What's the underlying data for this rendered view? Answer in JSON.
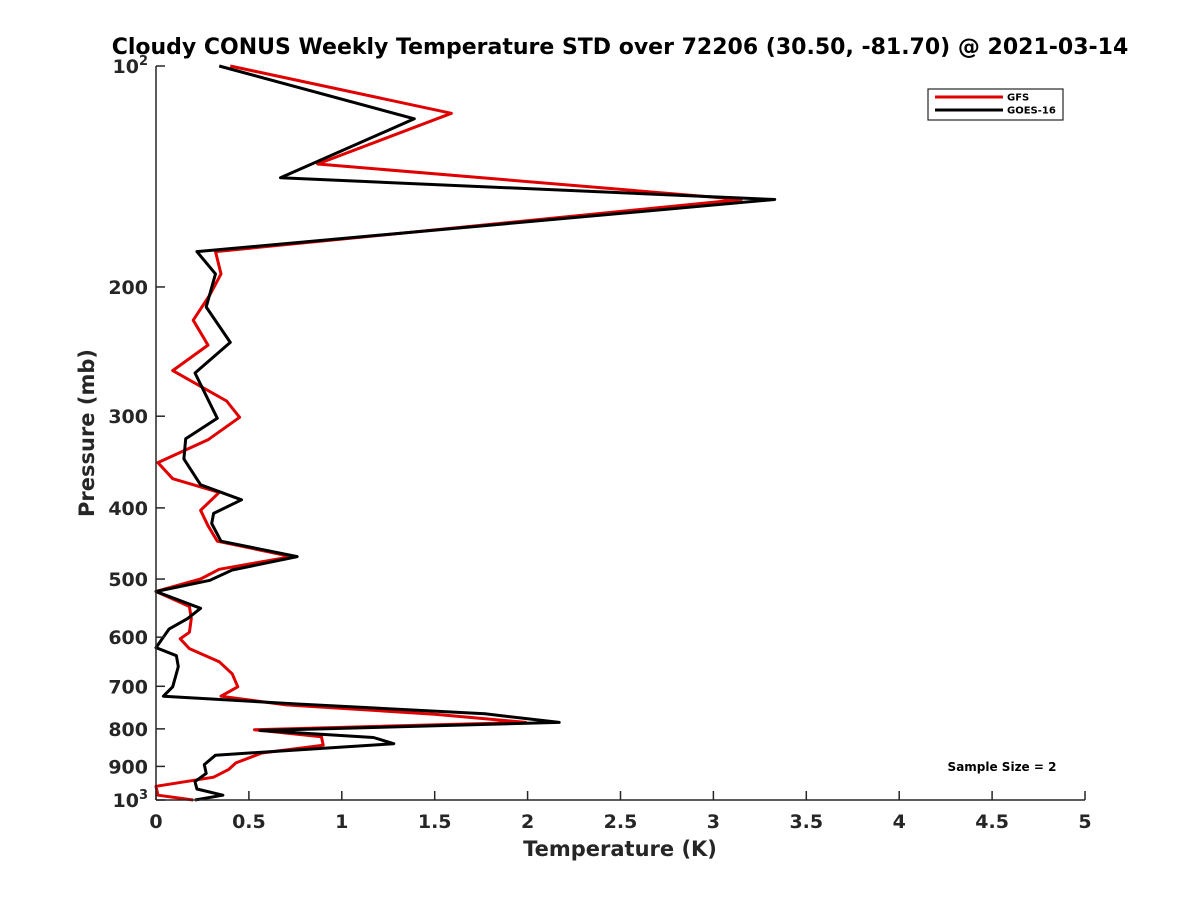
{
  "chart_data": {
    "type": "line",
    "title": "Cloudy CONUS Weekly Temperature STD over 72206 (30.50, -81.70) @ 2021-03-14",
    "xlabel": "Temperature (K)",
    "ylabel": "Pressure (mb)",
    "xlim": [
      0,
      5
    ],
    "ylim": [
      1000,
      100
    ],
    "yscale": "log",
    "y_reversed": true,
    "grid": false,
    "legend_position": "top-right",
    "x_ticks": [
      "0",
      "0.5",
      "1",
      "1.5",
      "2",
      "2.5",
      "3",
      "3.5",
      "4",
      "4.5",
      "5"
    ],
    "x_tick_values": [
      0,
      0.5,
      1,
      1.5,
      2,
      2.5,
      3,
      3.5,
      4,
      4.5,
      5
    ],
    "y_ticks": [
      {
        "value": 100,
        "base": "10",
        "exp": "2"
      },
      {
        "value": 200,
        "label": "200"
      },
      {
        "value": 300,
        "label": "300"
      },
      {
        "value": 400,
        "label": "400"
      },
      {
        "value": 500,
        "label": "500"
      },
      {
        "value": 600,
        "label": "600"
      },
      {
        "value": 700,
        "label": "700"
      },
      {
        "value": 800,
        "label": "800"
      },
      {
        "value": 900,
        "label": "900"
      },
      {
        "value": 1000,
        "base": "10",
        "exp": "3"
      }
    ],
    "annotation": "Sample Size = 2",
    "series": [
      {
        "name": "GFS",
        "color": "#e00000",
        "points": [
          [
            0.4,
            100
          ],
          [
            1.59,
            116
          ],
          [
            0.87,
            136
          ],
          [
            3.15,
            152
          ],
          [
            0.32,
            179
          ],
          [
            0.35,
            192
          ],
          [
            0.29,
            205
          ],
          [
            0.2,
            222
          ],
          [
            0.28,
            240
          ],
          [
            0.09,
            260
          ],
          [
            0.38,
            286
          ],
          [
            0.45,
            301
          ],
          [
            0.28,
            323
          ],
          [
            0.01,
            347
          ],
          [
            0.09,
            365
          ],
          [
            0.34,
            381
          ],
          [
            0.24,
            403
          ],
          [
            0.28,
            423
          ],
          [
            0.33,
            444
          ],
          [
            0.73,
            466
          ],
          [
            0.34,
            485
          ],
          [
            0.24,
            500
          ],
          [
            0.0,
            520
          ],
          [
            0.18,
            545
          ],
          [
            0.19,
            566
          ],
          [
            0.18,
            591
          ],
          [
            0.13,
            603
          ],
          [
            0.18,
            622
          ],
          [
            0.34,
            648
          ],
          [
            0.41,
            673
          ],
          [
            0.44,
            701
          ],
          [
            0.35,
            722
          ],
          [
            0.7,
            742
          ],
          [
            1.5,
            764
          ],
          [
            1.99,
            784
          ],
          [
            0.53,
            802
          ],
          [
            0.89,
            820
          ],
          [
            0.9,
            842
          ],
          [
            0.57,
            863
          ],
          [
            0.43,
            890
          ],
          [
            0.39,
            909
          ],
          [
            0.31,
            931
          ],
          [
            0.0,
            958
          ],
          [
            0.01,
            985
          ],
          [
            0.2,
            1000
          ]
        ]
      },
      {
        "name": "GOES-16",
        "color": "#000000",
        "points": [
          [
            0.34,
            100
          ],
          [
            1.39,
            118
          ],
          [
            0.67,
            142
          ],
          [
            3.33,
            152
          ],
          [
            0.22,
            179
          ],
          [
            0.32,
            192
          ],
          [
            0.27,
            213
          ],
          [
            0.4,
            238
          ],
          [
            0.21,
            262
          ],
          [
            0.33,
            302
          ],
          [
            0.16,
            322
          ],
          [
            0.15,
            343
          ],
          [
            0.24,
            372
          ],
          [
            0.46,
            390
          ],
          [
            0.31,
            407
          ],
          [
            0.3,
            420
          ],
          [
            0.35,
            444
          ],
          [
            0.76,
            466
          ],
          [
            0.41,
            486
          ],
          [
            0.29,
            502
          ],
          [
            0.0,
            520
          ],
          [
            0.24,
            548
          ],
          [
            0.17,
            566
          ],
          [
            0.07,
            585
          ],
          [
            0.0,
            620
          ],
          [
            0.11,
            636
          ],
          [
            0.12,
            658
          ],
          [
            0.09,
            701
          ],
          [
            0.04,
            722
          ],
          [
            0.76,
            740
          ],
          [
            1.77,
            763
          ],
          [
            2.17,
            784
          ],
          [
            0.56,
            804
          ],
          [
            1.17,
            822
          ],
          [
            1.28,
            838
          ],
          [
            0.32,
            869
          ],
          [
            0.26,
            895
          ],
          [
            0.27,
            920
          ],
          [
            0.21,
            944
          ],
          [
            0.22,
            966
          ],
          [
            0.36,
            985
          ],
          [
            0.21,
            1000
          ]
        ]
      }
    ]
  }
}
